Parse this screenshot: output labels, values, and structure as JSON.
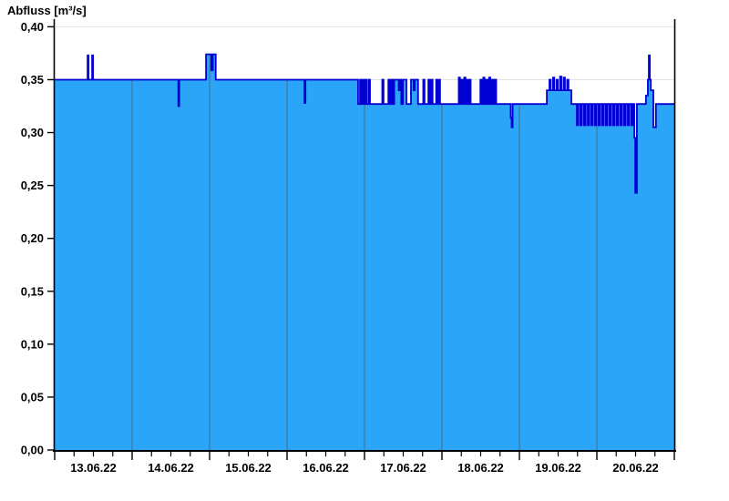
{
  "chart_data": {
    "type": "area",
    "title": "Abfluss [m³/s]",
    "ylabel": "Abfluss [m³/s]",
    "xlabel": "",
    "y_range": [
      0.0,
      0.4
    ],
    "y_tick_step": 0.05,
    "y_tick_labels": [
      "0,40",
      "0,35",
      "0,30",
      "0,25",
      "0,20",
      "0,15",
      "0,10",
      "0,05",
      "0,00"
    ],
    "x_range_hours": [
      0,
      192
    ],
    "x_day_hours": 24,
    "x_minor_tick_hours": 6,
    "x_tick_labels": [
      "13.06.22",
      "14.06.22",
      "15.06.22",
      "16.06.22",
      "17.06.22",
      "18.06.22",
      "19.06.22",
      "20.06.22"
    ],
    "grid": "horizontal-light, vertical day separators visible inside fill only",
    "legend": "none",
    "series": [
      {
        "name": "Abfluss",
        "unit": "m³/s",
        "interpolation": "step-after",
        "points_t_hours_value": [
          [
            0,
            0.35
          ],
          [
            10.2,
            0.373
          ],
          [
            10.5,
            0.35
          ],
          [
            11.6,
            0.373
          ],
          [
            11.9,
            0.35
          ],
          [
            38.3,
            0.325
          ],
          [
            38.6,
            0.35
          ],
          [
            46.9,
            0.374
          ],
          [
            48.5,
            0.359
          ],
          [
            49.0,
            0.374
          ],
          [
            49.9,
            0.35
          ],
          [
            77.4,
            0.328
          ],
          [
            77.7,
            0.35
          ],
          [
            94.0,
            0.327
          ],
          [
            94.6,
            0.35
          ],
          [
            95.0,
            0.327
          ],
          [
            95.4,
            0.35
          ],
          [
            95.9,
            0.327
          ],
          [
            96.3,
            0.35
          ],
          [
            96.7,
            0.327
          ],
          [
            97.3,
            0.35
          ],
          [
            97.7,
            0.327
          ],
          [
            101.5,
            0.35
          ],
          [
            101.9,
            0.327
          ],
          [
            103.4,
            0.35
          ],
          [
            103.8,
            0.327
          ],
          [
            104.3,
            0.35
          ],
          [
            104.8,
            0.327
          ],
          [
            105.2,
            0.35
          ],
          [
            106.6,
            0.34
          ],
          [
            106.9,
            0.35
          ],
          [
            107.4,
            0.327
          ],
          [
            107.9,
            0.35
          ],
          [
            109.0,
            0.327
          ],
          [
            110.4,
            0.35
          ],
          [
            111.2,
            0.34
          ],
          [
            111.6,
            0.35
          ],
          [
            112.6,
            0.327
          ],
          [
            114.2,
            0.35
          ],
          [
            114.6,
            0.327
          ],
          [
            115.8,
            0.35
          ],
          [
            116.2,
            0.327
          ],
          [
            116.7,
            0.35
          ],
          [
            117.1,
            0.327
          ],
          [
            118.2,
            0.35
          ],
          [
            118.6,
            0.327
          ],
          [
            119.0,
            0.35
          ],
          [
            119.4,
            0.327
          ],
          [
            125.2,
            0.352
          ],
          [
            125.6,
            0.327
          ],
          [
            126.0,
            0.35
          ],
          [
            126.4,
            0.327
          ],
          [
            126.9,
            0.352
          ],
          [
            127.3,
            0.327
          ],
          [
            127.7,
            0.35
          ],
          [
            128.1,
            0.327
          ],
          [
            128.5,
            0.35
          ],
          [
            128.9,
            0.327
          ],
          [
            131.9,
            0.35
          ],
          [
            132.3,
            0.327
          ],
          [
            132.8,
            0.352
          ],
          [
            133.2,
            0.327
          ],
          [
            133.7,
            0.35
          ],
          [
            134.1,
            0.327
          ],
          [
            134.6,
            0.352
          ],
          [
            135.0,
            0.327
          ],
          [
            135.5,
            0.35
          ],
          [
            135.9,
            0.327
          ],
          [
            136.4,
            0.35
          ],
          [
            136.8,
            0.327
          ],
          [
            141.3,
            0.314
          ],
          [
            141.6,
            0.305
          ],
          [
            141.9,
            0.327
          ],
          [
            152.5,
            0.34
          ],
          [
            153.3,
            0.35
          ],
          [
            153.7,
            0.34
          ],
          [
            154.4,
            0.352
          ],
          [
            154.8,
            0.34
          ],
          [
            155.5,
            0.35
          ],
          [
            155.9,
            0.34
          ],
          [
            156.6,
            0.353
          ],
          [
            157.0,
            0.34
          ],
          [
            157.7,
            0.352
          ],
          [
            158.1,
            0.34
          ],
          [
            158.8,
            0.35
          ],
          [
            159.2,
            0.34
          ],
          [
            160.1,
            0.327
          ],
          [
            161.8,
            0.307
          ],
          [
            162.2,
            0.327
          ],
          [
            162.9,
            0.307
          ],
          [
            163.3,
            0.327
          ],
          [
            164.0,
            0.307
          ],
          [
            164.5,
            0.327
          ],
          [
            165.2,
            0.307
          ],
          [
            165.6,
            0.327
          ],
          [
            166.3,
            0.307
          ],
          [
            166.7,
            0.327
          ],
          [
            167.4,
            0.307
          ],
          [
            167.8,
            0.327
          ],
          [
            168.5,
            0.307
          ],
          [
            168.9,
            0.327
          ],
          [
            169.6,
            0.307
          ],
          [
            170.0,
            0.327
          ],
          [
            170.7,
            0.307
          ],
          [
            171.2,
            0.327
          ],
          [
            171.9,
            0.307
          ],
          [
            172.3,
            0.327
          ],
          [
            173.0,
            0.307
          ],
          [
            173.4,
            0.327
          ],
          [
            174.1,
            0.307
          ],
          [
            174.6,
            0.327
          ],
          [
            175.3,
            0.307
          ],
          [
            175.7,
            0.327
          ],
          [
            176.4,
            0.307
          ],
          [
            176.9,
            0.327
          ],
          [
            177.6,
            0.307
          ],
          [
            178.0,
            0.327
          ],
          [
            178.7,
            0.307
          ],
          [
            179.1,
            0.327
          ],
          [
            179.6,
            0.295
          ],
          [
            179.9,
            0.243
          ],
          [
            180.4,
            0.327
          ],
          [
            183.2,
            0.335
          ],
          [
            183.8,
            0.35
          ],
          [
            184.1,
            0.373
          ],
          [
            184.4,
            0.35
          ],
          [
            184.7,
            0.34
          ],
          [
            185.5,
            0.305
          ],
          [
            186.3,
            0.327
          ],
          [
            192,
            0.327
          ]
        ]
      }
    ],
    "colors": {
      "background": "#ffffff",
      "fill": "#2aa5f7",
      "line": "#0000d2",
      "grid": "#e2e2e2",
      "day_separator": "#45789b",
      "axis": "#000000",
      "text": "#000000"
    }
  }
}
